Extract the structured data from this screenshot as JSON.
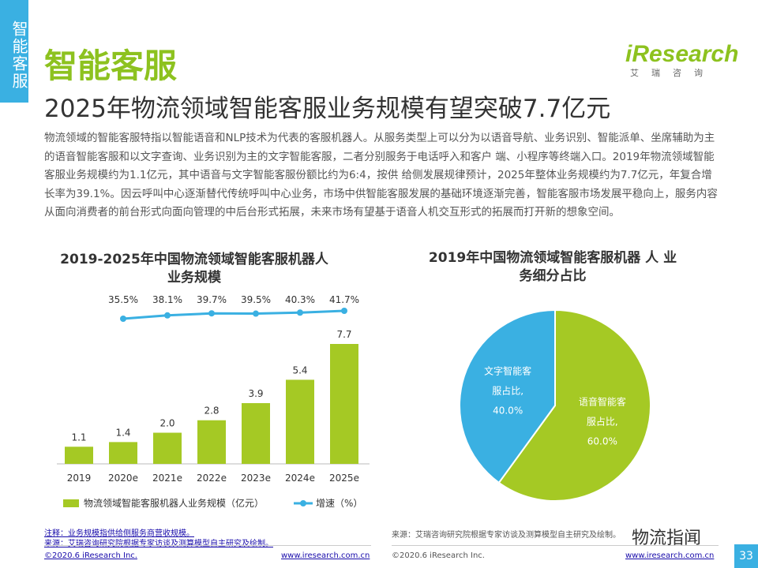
{
  "side_tab": "智能客服",
  "section_title": "智能客服",
  "logo": {
    "main": "iResearch",
    "sub": "艾瑞咨询"
  },
  "headline": "2025年物流领域智能客服业务规模有望突破7.7亿元",
  "intro": "物流领域的智能客服特指以智能语音和NLP技术为代表的客服机器人。从服务类型上可以分为以语音导航、业务识别、智能派单、坐席辅助为主的语音智能客服和以文字查询、业务识别为主的文字智能客服，二者分别服务于电话呼入和客户 端、小程序等终端入口。2019年物流领域智能客服业务规模约为1.1亿元，其中语音与文字智能客服份额比约为6:4，按供 给侧发展规律预计，2025年整体业务规模约为7.7亿元，年复合增长率为39.1%。因云呼叫中心逐渐替代传统呼叫中心业务，市场中供智能客服发展的基础环境逐渐完善，智能客服市场发展平稳向上，服务内容从面向消费者的前台形式向面向管理的中后台形式拓展，未来市场有望基于语音人机交互形式的拓展而打开新的想象空间。",
  "colors": {
    "green": "#a5c924",
    "blue": "#3ab0e2",
    "title_green": "#8dc21f"
  },
  "chart_data": [
    {
      "type": "bar",
      "title": "2019-2025年中国物流领域智能客服机器人 业务规模",
      "categories": [
        "2019",
        "2020e",
        "2021e",
        "2022e",
        "2023e",
        "2024e",
        "2025e"
      ],
      "series": [
        {
          "name": "物流领域智能客服机器人业务规模（亿元）",
          "type": "bar",
          "values": [
            1.1,
            1.4,
            2.0,
            2.8,
            3.9,
            5.4,
            7.7
          ],
          "labels": [
            "1.1",
            "1.4",
            "2.0",
            "2.8",
            "3.9",
            "5.4",
            "7.7"
          ]
        },
        {
          "name": "增速（%）",
          "type": "line",
          "values": [
            35.5,
            38.1,
            39.7,
            39.5,
            40.3,
            41.7
          ],
          "x": [
            "2020e",
            "2021e",
            "2022e",
            "2023e",
            "2024e",
            "2025e"
          ],
          "labels": [
            "35.5%",
            "38.1%",
            "39.7%",
            "39.5%",
            "40.3%",
            "41.7%"
          ]
        }
      ],
      "legend_position": "bottom",
      "grid": false
    },
    {
      "type": "pie",
      "title": "2019年中国物流领域智能客服机器 人 业务细分占比",
      "slices": [
        {
          "label_lines": [
            "语音智能客",
            "服占比,",
            "60.0%"
          ],
          "value": 60.0
        },
        {
          "label_lines": [
            "文字智能客",
            "服占比,",
            "40.0%"
          ],
          "value": 40.0
        }
      ]
    }
  ],
  "footer": {
    "note": "注释：业务规模指供给侧服务商营收规模。",
    "source_left": "来源：艾瑞咨询研究院根据专家访谈及测算模型自主研究及绘制。",
    "source_right": "来源：艾瑞咨询研究院根据专家访谈及测算模型自主研究及绘制。",
    "copyright": "©2020.6 iResearch Inc.",
    "url": "www.iresearch.com.cn"
  },
  "watermark": "物流指闻",
  "page_number": "33"
}
